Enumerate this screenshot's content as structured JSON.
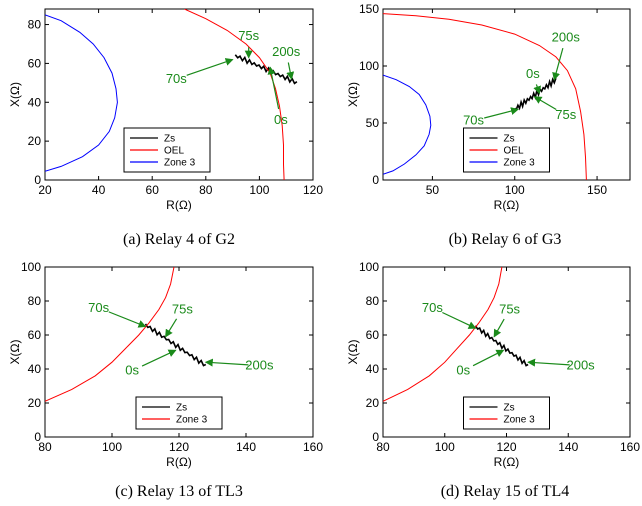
{
  "colors": {
    "zs": "#000000",
    "oel": "#ff0000",
    "zone3": "#0000ff",
    "annotation": "#1a8a1a"
  },
  "chart_data": [
    {
      "type": "line",
      "caption": "(a) Relay 4 of G2",
      "xlabel": "R(Ω)",
      "ylabel": "X(Ω)",
      "xlim": [
        20,
        120
      ],
      "ylim": [
        0,
        88
      ],
      "xticks": [
        20,
        40,
        60,
        80,
        100,
        120
      ],
      "yticks": [
        0,
        20,
        40,
        60,
        80
      ],
      "legend": [
        "Zs",
        "OEL",
        "Zone 3"
      ],
      "legend_position": "lower-center",
      "series": [
        {
          "name": "Zs",
          "color": "zs",
          "kind": "trajectory",
          "from": [
            91,
            64
          ],
          "to": [
            114,
            50
          ],
          "jitter": 1.2
        },
        {
          "name": "OEL",
          "color": "oel",
          "points": [
            [
              72,
              88
            ],
            [
              80,
              83
            ],
            [
              88,
              77
            ],
            [
              95,
              70
            ],
            [
              100,
              63
            ],
            [
              104,
              55
            ],
            [
              106,
              47
            ],
            [
              107.5,
              38
            ],
            [
              108.5,
              28
            ],
            [
              109,
              18
            ],
            [
              109,
              8
            ],
            [
              109.2,
              0
            ]
          ]
        },
        {
          "name": "Zone 3",
          "color": "zone3",
          "points": [
            [
              20,
              85
            ],
            [
              26,
              82
            ],
            [
              33,
              76
            ],
            [
              38,
              70
            ],
            [
              42,
              63
            ],
            [
              45,
              55
            ],
            [
              46.5,
              47
            ],
            [
              47,
              40
            ],
            [
              46,
              32
            ],
            [
              44,
              25
            ],
            [
              40,
              18
            ],
            [
              34,
              12
            ],
            [
              26,
              7
            ],
            [
              20,
              4.5
            ]
          ]
        }
      ],
      "annotations": [
        {
          "text": "75s",
          "target": [
            96,
            63
          ],
          "text_at": [
            96,
            74
          ]
        },
        {
          "text": "200s",
          "target": [
            112,
            52
          ],
          "text_at": [
            110,
            66
          ]
        },
        {
          "text": "70s",
          "target": [
            90,
            62
          ],
          "text_at": [
            69,
            52
          ]
        },
        {
          "text": "0s",
          "target": [
            104,
            58
          ],
          "text_at": [
            108,
            31
          ]
        }
      ]
    },
    {
      "type": "line",
      "caption": "(b) Relay 6 of G3",
      "xlabel": "R(Ω)",
      "ylabel": "X(Ω)",
      "xlim": [
        20,
        170
      ],
      "ylim": [
        0,
        150
      ],
      "xticks": [
        50,
        100,
        150
      ],
      "yticks": [
        0,
        50,
        100,
        150
      ],
      "legend": [
        "Zs",
        "OEL",
        "Zone 3"
      ],
      "legend_position": "lower-center",
      "series": [
        {
          "name": "Zs",
          "color": "zs",
          "kind": "trajectory",
          "from": [
            100,
            62
          ],
          "to": [
            125,
            88
          ],
          "jitter": 2.5
        },
        {
          "name": "OEL",
          "color": "oel",
          "points": [
            [
              20,
              146
            ],
            [
              40,
              144
            ],
            [
              60,
              141
            ],
            [
              80,
              136
            ],
            [
              100,
              128
            ],
            [
              115,
              118
            ],
            [
              125,
              108
            ],
            [
              132,
              96
            ],
            [
              137,
              80
            ],
            [
              140,
              60
            ],
            [
              142,
              40
            ],
            [
              143,
              20
            ],
            [
              143.5,
              0
            ]
          ]
        },
        {
          "name": "Zone 3",
          "color": "zone3",
          "points": [
            [
              20,
              92
            ],
            [
              28,
              88
            ],
            [
              36,
              82
            ],
            [
              42,
              75
            ],
            [
              46,
              66
            ],
            [
              48.5,
              56
            ],
            [
              49,
              48
            ],
            [
              48,
              40
            ],
            [
              45,
              30
            ],
            [
              40,
              22
            ],
            [
              33,
              14
            ],
            [
              26,
              8
            ],
            [
              20,
              5
            ]
          ]
        }
      ],
      "annotations": [
        {
          "text": "200s",
          "target": [
            124,
            88
          ],
          "text_at": [
            131,
            125
          ]
        },
        {
          "text": "0s",
          "target": [
            115,
            76
          ],
          "text_at": [
            111,
            93
          ]
        },
        {
          "text": "75s",
          "target": [
            112,
            73
          ],
          "text_at": [
            131,
            57
          ]
        },
        {
          "text": "70s",
          "target": [
            102,
            62
          ],
          "text_at": [
            75,
            52
          ]
        }
      ]
    },
    {
      "type": "line",
      "caption": "(c) Relay 13 of TL3",
      "xlabel": "R(Ω)",
      "ylabel": "X(Ω)",
      "xlim": [
        80,
        160
      ],
      "ylim": [
        0,
        100
      ],
      "xticks": [
        80,
        100,
        120,
        140,
        160
      ],
      "yticks": [
        0,
        20,
        40,
        60,
        80,
        100
      ],
      "legend": [
        "Zs",
        "Zone 3"
      ],
      "legend_position": "lower-center",
      "series": [
        {
          "name": "Zs",
          "color": "zs",
          "kind": "trajectory",
          "from": [
            110,
            66
          ],
          "to": [
            128,
            42
          ],
          "jitter": 1.3
        },
        {
          "name": "Zone 3",
          "color": "oel",
          "points": [
            [
              80,
              21
            ],
            [
              88,
              28
            ],
            [
              95,
              36
            ],
            [
              100,
              44
            ],
            [
              104,
              52
            ],
            [
              108,
              60
            ],
            [
              111,
              67
            ],
            [
              114,
              75
            ],
            [
              116,
              82
            ],
            [
              117.5,
              90
            ],
            [
              118.5,
              100
            ]
          ]
        }
      ],
      "annotations": [
        {
          "text": "70s",
          "target": [
            110,
            65
          ],
          "text_at": [
            96,
            76
          ]
        },
        {
          "text": "75s",
          "target": [
            116,
            59
          ],
          "text_at": [
            121,
            75
          ]
        },
        {
          "text": "0s",
          "target": [
            119,
            51
          ],
          "text_at": [
            106,
            39
          ]
        },
        {
          "text": "200s",
          "target": [
            128,
            44
          ],
          "text_at": [
            144,
            42
          ]
        }
      ]
    },
    {
      "type": "line",
      "caption": "(d) Relay 15 of TL4",
      "xlabel": "R(Ω)",
      "ylabel": "X(Ω)",
      "xlim": [
        80,
        160
      ],
      "ylim": [
        0,
        100
      ],
      "xticks": [
        80,
        100,
        120,
        140,
        160
      ],
      "yticks": [
        0,
        20,
        40,
        60,
        80,
        100
      ],
      "legend": [
        "Zs",
        "Zone 3"
      ],
      "legend_position": "lower-center",
      "series": [
        {
          "name": "Zs",
          "color": "zs",
          "kind": "trajectory",
          "from": [
            110,
            65
          ],
          "to": [
            127,
            42
          ],
          "jitter": 1.3
        },
        {
          "name": "Zone 3",
          "color": "oel",
          "points": [
            [
              80,
              21
            ],
            [
              88,
              28
            ],
            [
              95,
              36
            ],
            [
              100,
              44
            ],
            [
              104,
              52
            ],
            [
              108,
              60
            ],
            [
              111,
              67
            ],
            [
              114,
              75
            ],
            [
              116,
              82
            ],
            [
              117.5,
              90
            ],
            [
              118.5,
              100
            ]
          ]
        }
      ],
      "annotations": [
        {
          "text": "70s",
          "target": [
            110,
            64
          ],
          "text_at": [
            96,
            76
          ]
        },
        {
          "text": "75s",
          "target": [
            116,
            59
          ],
          "text_at": [
            121,
            75
          ]
        },
        {
          "text": "0s",
          "target": [
            119,
            51
          ],
          "text_at": [
            106,
            39
          ]
        },
        {
          "text": "200s",
          "target": [
            127,
            44
          ],
          "text_at": [
            144,
            42
          ]
        }
      ]
    }
  ]
}
